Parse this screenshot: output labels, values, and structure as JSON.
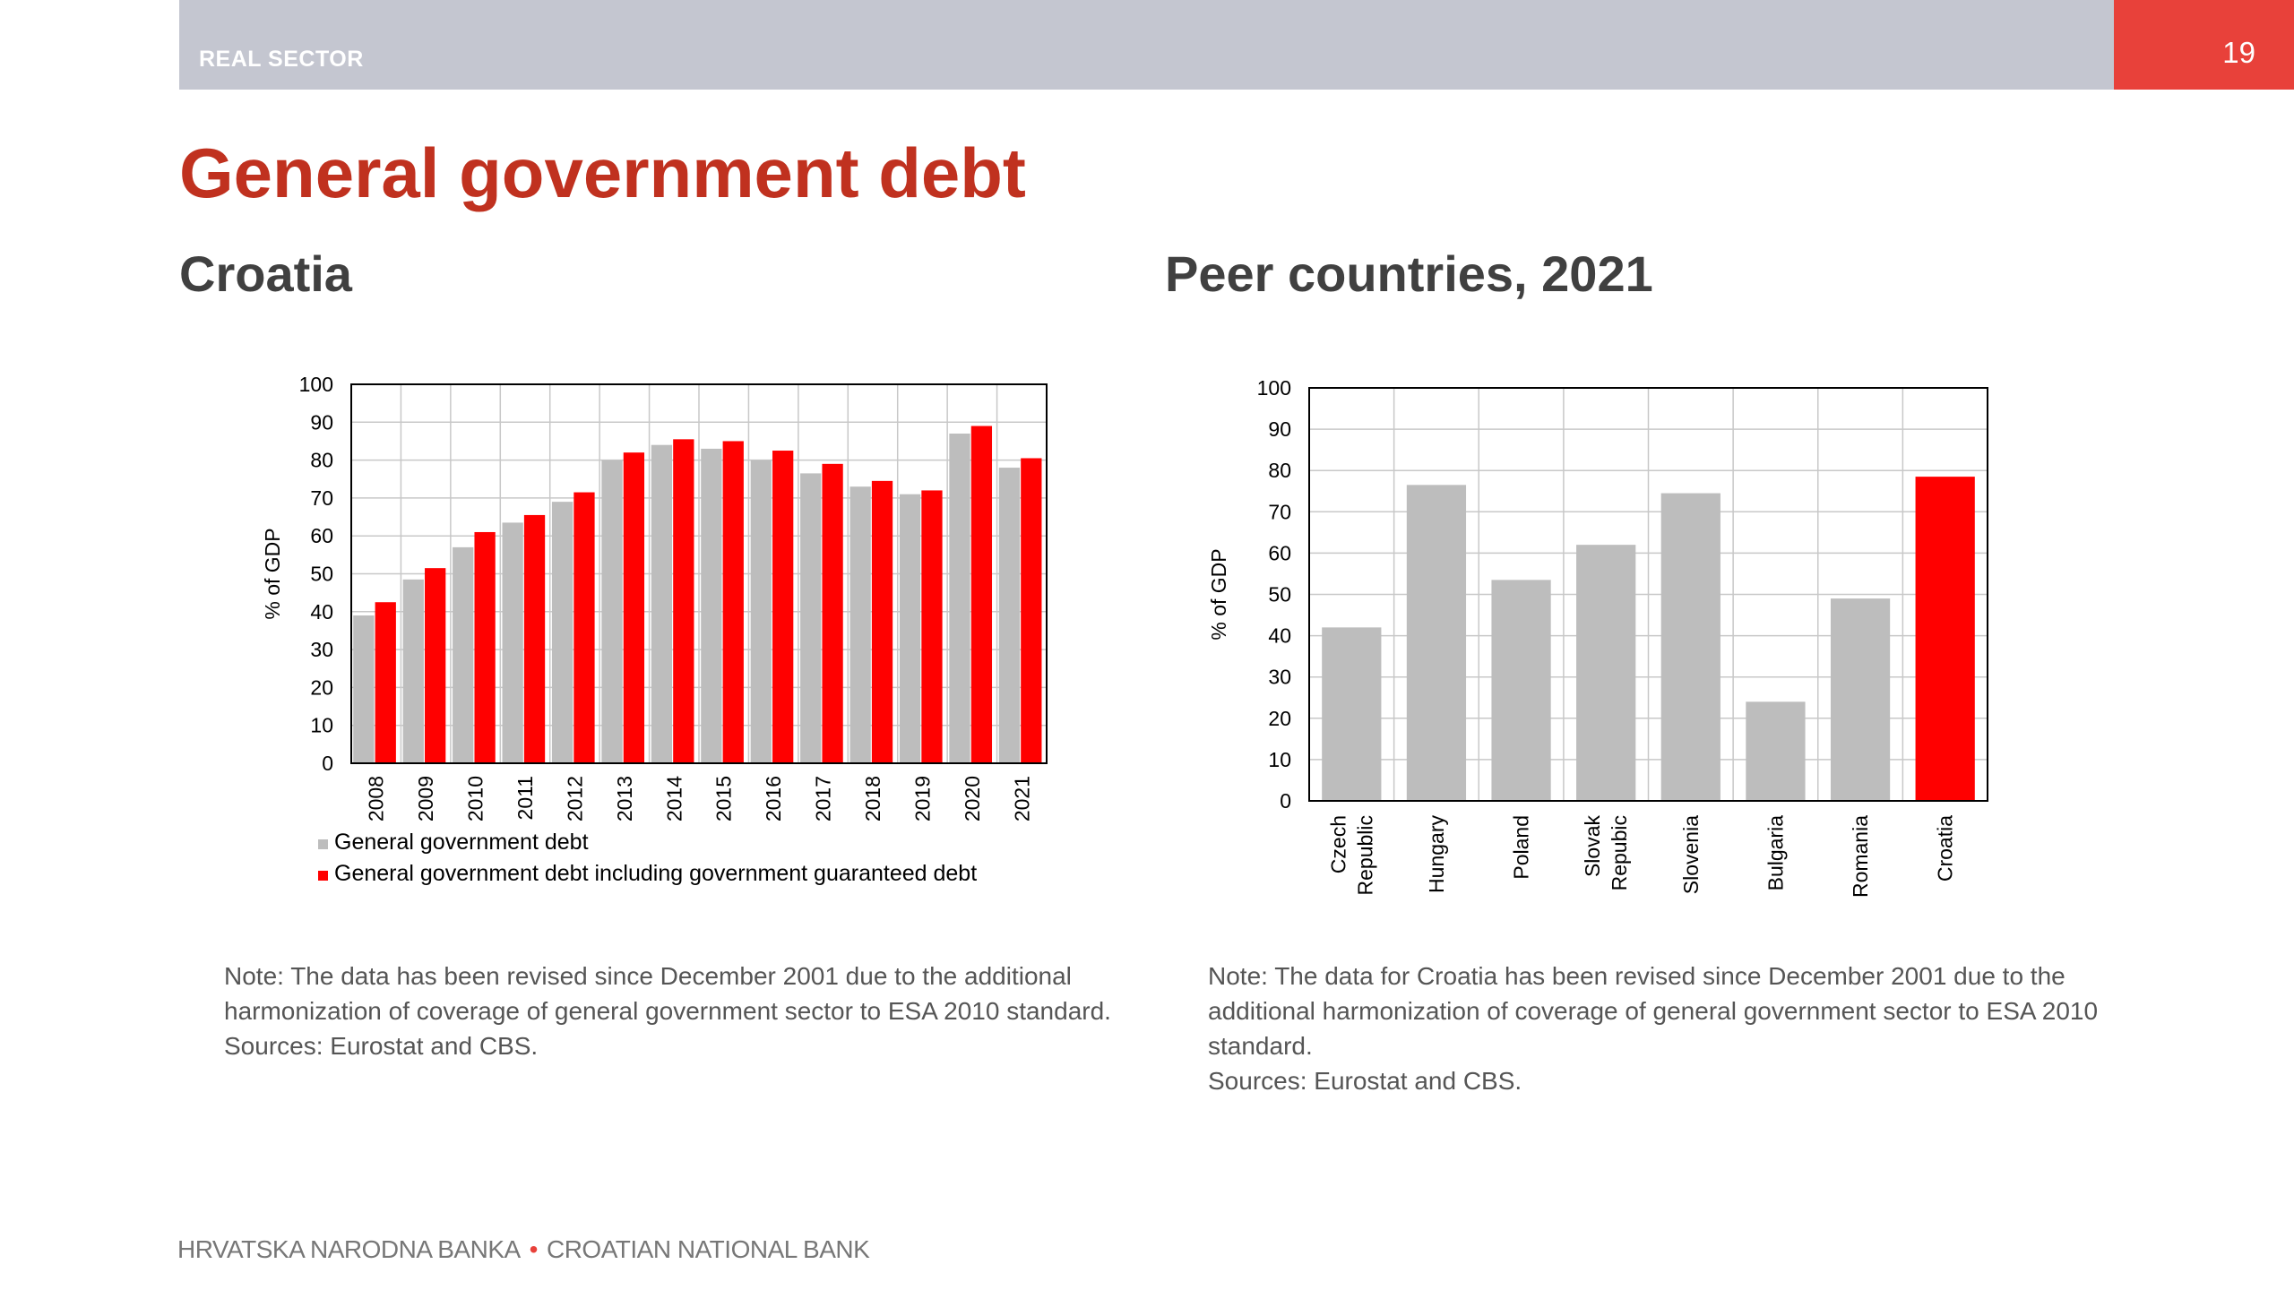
{
  "header": {
    "section": "REAL SECTOR",
    "page_number": "19",
    "colors": {
      "bar": "#c4c6d0",
      "accent": "#e8413a",
      "title": "#c0311f"
    }
  },
  "title": "General government debt",
  "left": {
    "subtitle": "Croatia",
    "note": "Note: The data has been revised since December 2001 due to the additional harmonization of coverage of general government sector to ESA 2010 standard.",
    "sources": "Sources: Eurostat and CBS."
  },
  "right": {
    "subtitle": "Peer countries, 2021",
    "note": "Note: The data for Croatia has been revised since December 2001 due to the additional harmonization of coverage of general government sector to ESA 2010 standard.",
    "sources": "Sources: Eurostat and CBS."
  },
  "footer": {
    "left": "HRVATSKA NARODNA BANKA",
    "dot": "•",
    "right": "CROATIAN NATIONAL BANK"
  },
  "chart_data": [
    {
      "type": "bar",
      "categories": [
        "2008",
        "2009",
        "2010",
        "2011",
        "2012",
        "2013",
        "2014",
        "2015",
        "2016",
        "2017",
        "2018",
        "2019",
        "2020",
        "2021"
      ],
      "series": [
        {
          "name": "General government debt",
          "color": "#bdbdbd",
          "values": [
            39,
            48.5,
            57,
            63.5,
            69,
            80,
            84,
            83,
            80,
            76.5,
            73,
            71,
            87,
            78
          ]
        },
        {
          "name": "General government debt including government guaranteed debt",
          "color": "#ff0000",
          "values": [
            42.5,
            51.5,
            61,
            65.5,
            71.5,
            82,
            85.5,
            85,
            82.5,
            79,
            74.5,
            72,
            89,
            80.5
          ]
        }
      ],
      "ylabel": "% of GDP",
      "ylim": [
        0,
        100
      ],
      "yticks": [
        0,
        10,
        20,
        30,
        40,
        50,
        60,
        70,
        80,
        90,
        100
      ],
      "grid": true,
      "legend_position": "bottom"
    },
    {
      "type": "bar",
      "categories": [
        [
          "Czech",
          "Republic"
        ],
        [
          "Hungary"
        ],
        [
          "Poland"
        ],
        [
          "Slovak",
          "Repubic"
        ],
        [
          "Slovenia"
        ],
        [
          "Bulgaria"
        ],
        [
          "Romania"
        ],
        [
          "Croatia"
        ]
      ],
      "values": [
        42,
        76.5,
        53.5,
        62,
        74.5,
        24,
        49,
        78.5
      ],
      "colors": [
        "#bdbdbd",
        "#bdbdbd",
        "#bdbdbd",
        "#bdbdbd",
        "#bdbdbd",
        "#bdbdbd",
        "#bdbdbd",
        "#ff0000"
      ],
      "ylabel": "% of GDP",
      "ylim": [
        0,
        100
      ],
      "yticks": [
        0,
        10,
        20,
        30,
        40,
        50,
        60,
        70,
        80,
        90,
        100
      ],
      "grid": true
    }
  ]
}
